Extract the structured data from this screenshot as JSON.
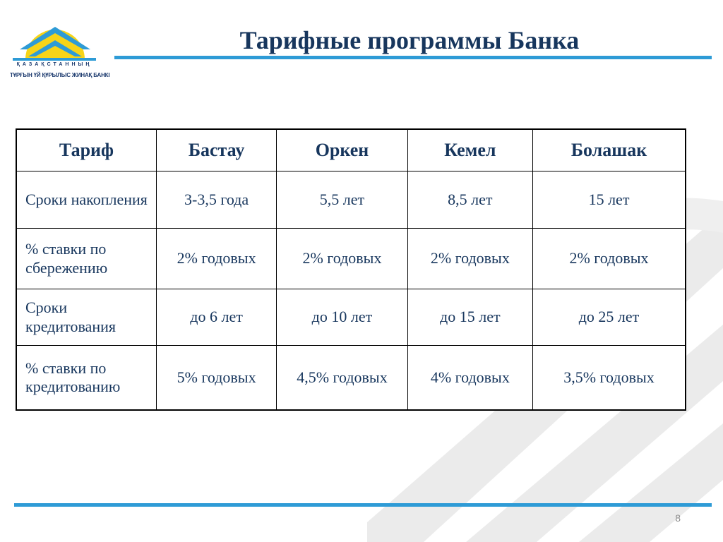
{
  "logo": {
    "line1": "ҚАЗАҚСТАННЫҢ",
    "line2": "ТҰРҒЫН ҮЙ ҚҰРЫЛЫС ЖИНАҚ БАНКІ"
  },
  "title": "Тарифные программы Банка",
  "table": {
    "headers": [
      "Тариф",
      "Бастау",
      "Оркен",
      "Кемел",
      "Болашак"
    ],
    "rows": [
      {
        "label": "Сроки накопления",
        "values": [
          "3-3,5 года",
          "5,5 лет",
          "8,5 лет",
          "15 лет"
        ]
      },
      {
        "label": "% ставки по сбережению",
        "values": [
          "2% годовых",
          "2% годовых",
          "2% годовых",
          "2% годовых"
        ]
      },
      {
        "label": "Сроки кредитования",
        "values": [
          "до 6 лет",
          "до 10 лет",
          "до 15 лет",
          "до 25 лет"
        ]
      },
      {
        "label": "% ставки по кредитованию",
        "values": [
          "5% годовых",
          "4,5% годовых",
          "4% годовых",
          "3,5% годовых"
        ]
      }
    ]
  },
  "page_number": "8",
  "colors": {
    "accent": "#2e9bd6",
    "title": "#17365d",
    "logo_sun": "#f7d417",
    "logo_roof": "#2e9bd6"
  }
}
